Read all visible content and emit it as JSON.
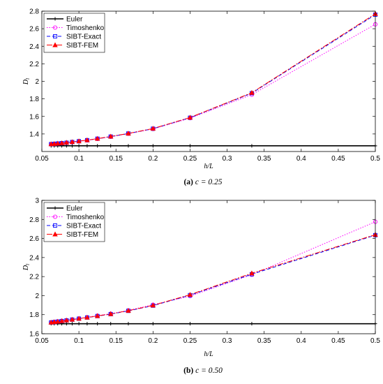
{
  "chart_data": [
    {
      "type": "line",
      "caption_letter": "(a)",
      "caption_text": " c = 0.25",
      "xlabel": "h/L",
      "ylabel": "D",
      "ylabel_sub": "l",
      "xlim": [
        0.05,
        0.5
      ],
      "ylim": [
        1.2,
        2.8
      ],
      "xticks": [
        "0.05",
        "0.1",
        "0.15",
        "0.2",
        "0.25",
        "0.3",
        "0.35",
        "0.4",
        "0.45",
        "0.5"
      ],
      "yticks": [
        "1.4",
        "1.6",
        "1.8",
        "2",
        "2.2",
        "2.4",
        "2.6",
        "2.8"
      ],
      "legend_position": "top-left",
      "x": [
        0.0625,
        0.0667,
        0.0714,
        0.0769,
        0.0833,
        0.0909,
        0.1,
        0.1111,
        0.125,
        0.1429,
        0.1667,
        0.2,
        0.25,
        0.3333,
        0.5
      ],
      "series": [
        {
          "name": "Euler",
          "color": "#000000",
          "dash": "",
          "marker": "plus",
          "values": [
            1.265,
            1.265,
            1.265,
            1.265,
            1.265,
            1.265,
            1.265,
            1.265,
            1.265,
            1.265,
            1.265,
            1.265,
            1.265,
            1.265,
            1.265
          ]
        },
        {
          "name": "Timoshenko",
          "color": "#ff00ff",
          "dash": "1.5,2",
          "marker": "circle",
          "values": [
            1.283,
            1.286,
            1.29,
            1.294,
            1.3,
            1.306,
            1.315,
            1.327,
            1.344,
            1.368,
            1.403,
            1.457,
            1.58,
            1.848,
            2.65
          ]
        },
        {
          "name": "SIBT-Exact",
          "color": "#0000ff",
          "dash": "5,3",
          "marker": "square",
          "values": [
            1.284,
            1.287,
            1.291,
            1.295,
            1.3,
            1.308,
            1.317,
            1.329,
            1.346,
            1.37,
            1.405,
            1.46,
            1.585,
            1.865,
            2.76
          ]
        },
        {
          "name": "SIBT-FEM",
          "color": "#ff0000",
          "dash": "8,2,2,2",
          "marker": "triangle",
          "values": [
            1.285,
            1.288,
            1.292,
            1.296,
            1.302,
            1.309,
            1.318,
            1.33,
            1.347,
            1.372,
            1.406,
            1.462,
            1.588,
            1.87,
            2.77
          ]
        }
      ]
    },
    {
      "type": "line",
      "caption_letter": "(b)",
      "caption_text": " c = 0.50",
      "xlabel": "h/L",
      "ylabel": "D",
      "ylabel_sub": "l",
      "xlim": [
        0.05,
        0.5
      ],
      "ylim": [
        1.6,
        3.0
      ],
      "xticks": [
        "0.05",
        "0.1",
        "0.15",
        "0.2",
        "0.25",
        "0.3",
        "0.35",
        "0.4",
        "0.45",
        "0.5"
      ],
      "yticks": [
        "1.6",
        "1.8",
        "2",
        "2.2",
        "2.4",
        "2.6",
        "2.8",
        "3"
      ],
      "legend_position": "top-left",
      "x": [
        0.0625,
        0.0667,
        0.0714,
        0.0769,
        0.0833,
        0.0909,
        0.1,
        0.1111,
        0.125,
        0.1429,
        0.1667,
        0.2,
        0.25,
        0.3333,
        0.5
      ],
      "series": [
        {
          "name": "Euler",
          "color": "#000000",
          "dash": "",
          "marker": "plus",
          "values": [
            1.705,
            1.705,
            1.705,
            1.705,
            1.705,
            1.705,
            1.705,
            1.705,
            1.705,
            1.705,
            1.705,
            1.705,
            1.705,
            1.705,
            1.705
          ]
        },
        {
          "name": "Timoshenko",
          "color": "#ff00ff",
          "dash": "1.5,2",
          "marker": "circle",
          "values": [
            1.72,
            1.725,
            1.73,
            1.735,
            1.742,
            1.75,
            1.76,
            1.773,
            1.79,
            1.81,
            1.845,
            1.905,
            1.995,
            2.22,
            2.775
          ]
        },
        {
          "name": "SIBT-Exact",
          "color": "#0000ff",
          "dash": "5,3",
          "marker": "square",
          "values": [
            1.718,
            1.722,
            1.727,
            1.733,
            1.74,
            1.748,
            1.758,
            1.77,
            1.785,
            1.806,
            1.84,
            1.895,
            2.005,
            2.225,
            2.635
          ]
        },
        {
          "name": "SIBT-FEM",
          "color": "#ff0000",
          "dash": "8,2,2,2",
          "marker": "triangle",
          "values": [
            1.719,
            1.723,
            1.728,
            1.734,
            1.741,
            1.749,
            1.759,
            1.771,
            1.787,
            1.808,
            1.842,
            1.898,
            2.01,
            2.235,
            2.64
          ]
        }
      ]
    }
  ]
}
